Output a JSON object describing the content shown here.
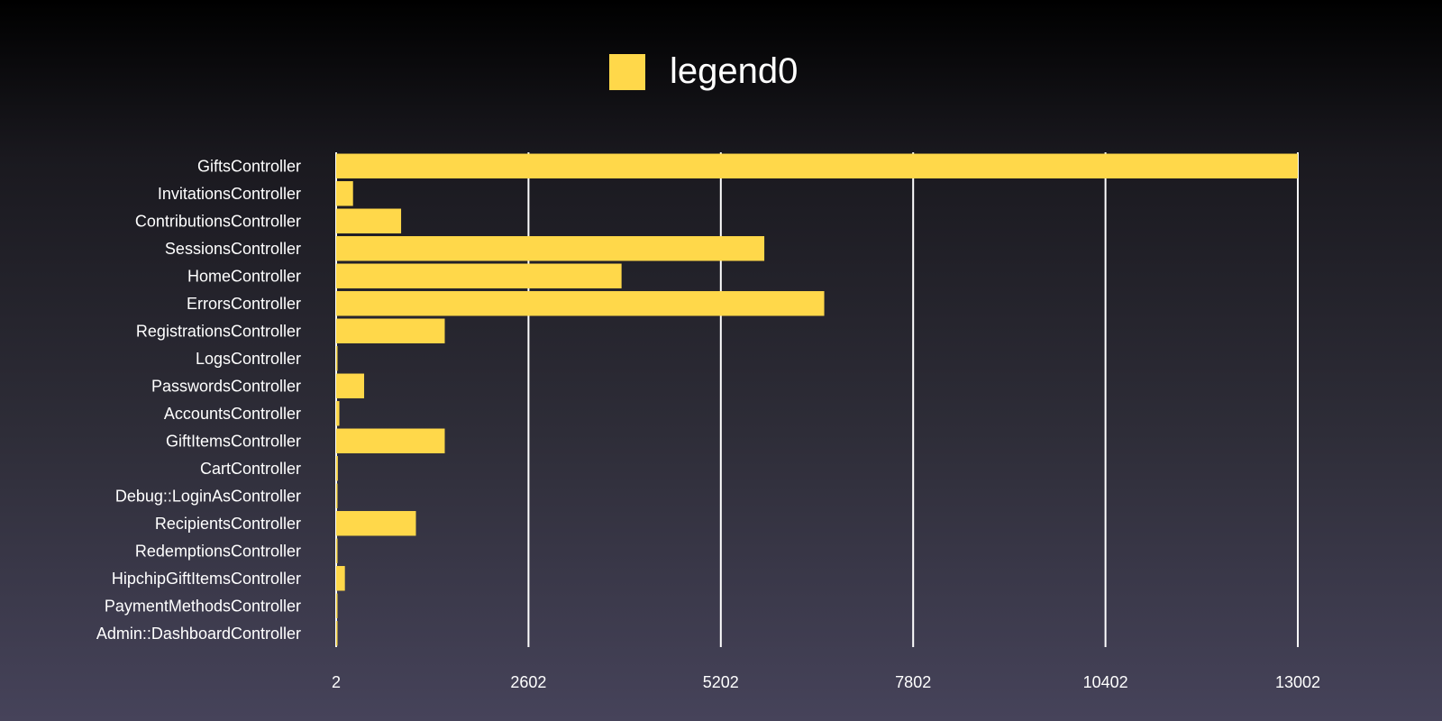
{
  "chart_data": {
    "type": "bar",
    "orientation": "horizontal",
    "title": "",
    "xlabel": "",
    "ylabel": "",
    "legend": {
      "placement": "top-center",
      "entries": [
        "legend0"
      ]
    },
    "grid": true,
    "bar_color": "#ffd84a",
    "xlim": [
      2,
      13002
    ],
    "x_ticks": [
      "2",
      "2602",
      "5202",
      "7802",
      "10402",
      "13002"
    ],
    "categories": [
      "GiftsController",
      "InvitationsController",
      "ContributionsController",
      "SessionsController",
      "HomeController",
      "ErrorsController",
      "RegistrationsController",
      "LogsController",
      "PasswordsController",
      "AccountsController",
      "GiftItemsController",
      "CartController",
      "Debug::LoginAsController",
      "RecipientsController",
      "RedemptionsController",
      "HipchipGiftItemsController",
      "PaymentMethodsController",
      "Admin::DashboardController"
    ],
    "series": [
      {
        "name": "legend0",
        "values": [
          13002,
          230,
          880,
          5790,
          3860,
          6600,
          1470,
          5,
          380,
          45,
          1470,
          25,
          5,
          1080,
          5,
          120,
          5,
          5
        ]
      }
    ]
  }
}
